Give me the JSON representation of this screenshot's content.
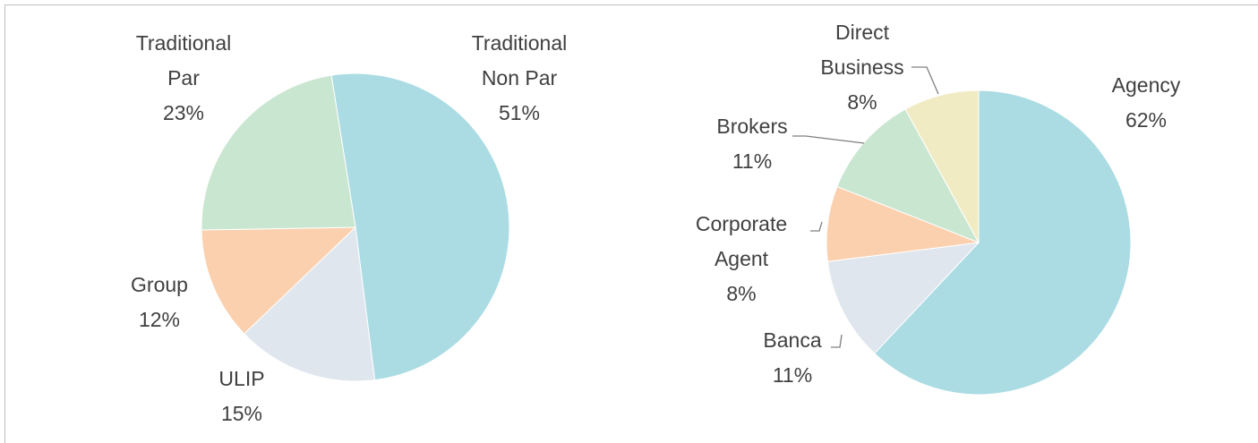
{
  "chart_data": [
    {
      "type": "pie",
      "categories": [
        [
          "Traditional",
          "Non Par"
        ],
        [
          "ULIP"
        ],
        [
          "Group"
        ],
        [
          "Traditional",
          "Par"
        ]
      ],
      "values": [
        51,
        15,
        12,
        23
      ],
      "value_labels": [
        "51%",
        "15%",
        "12%",
        "23%"
      ],
      "colors": [
        "#abdce3",
        "#dfe6ee",
        "#fbd0ae",
        "#c9e6d0"
      ]
    },
    {
      "type": "pie",
      "categories": [
        [
          "Agency"
        ],
        [
          "Banca"
        ],
        [
          "Corporate",
          "Agent"
        ],
        [
          "Brokers"
        ],
        [
          "Direct",
          "Business"
        ]
      ],
      "values": [
        62,
        11,
        8,
        11,
        8
      ],
      "value_labels": [
        "62%",
        "11%",
        "8%",
        "11%",
        "8%"
      ],
      "colors": [
        "#abdce3",
        "#dfe6ee",
        "#fbd0ae",
        "#c9e6d0",
        "#f1ebc4"
      ]
    }
  ]
}
